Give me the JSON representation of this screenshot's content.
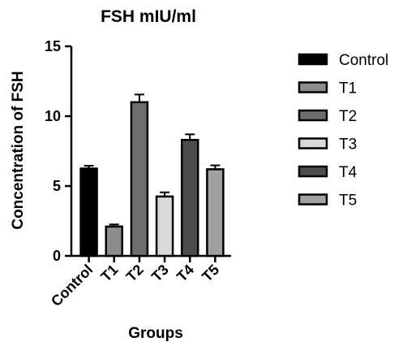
{
  "chart_data": {
    "type": "bar",
    "title": "FSH mIU/ml",
    "xlabel": "Groups",
    "ylabel": "Concentration of FSH",
    "categories": [
      "Control",
      "T1",
      "T2",
      "T3",
      "T4",
      "T5"
    ],
    "values": [
      6.25,
      2.1,
      11.0,
      4.25,
      8.3,
      6.2
    ],
    "errors": [
      0.2,
      0.15,
      0.55,
      0.3,
      0.4,
      0.28
    ],
    "colors": [
      "#000000",
      "#8c8c8c",
      "#6e6e6e",
      "#d9d9d9",
      "#4d4d4d",
      "#a0a0a0"
    ],
    "ylim": [
      0,
      15
    ],
    "yticks": [
      "0",
      "5",
      "10",
      "15"
    ],
    "legend_position": "right",
    "grid": false
  }
}
